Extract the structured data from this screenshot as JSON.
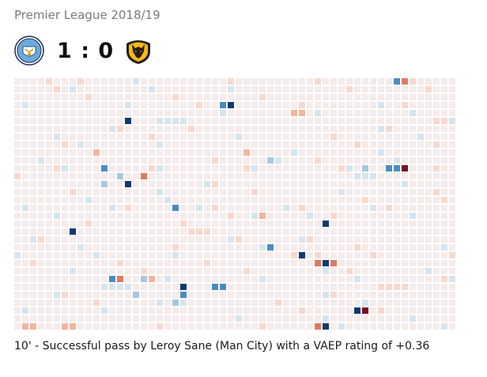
{
  "header": {
    "season": "Premier League 2018/19",
    "home_score": "1",
    "separator": ":",
    "away_score": "0",
    "home_crest_icon": "man-city-crest-icon",
    "away_crest_icon": "wolves-crest-icon"
  },
  "grid": {
    "rows": 32,
    "cols": 56,
    "colors": {
      "empty": "#f4ebea",
      "pos_light": "#d6e4ef",
      "pos_mid": "#a6c8e0",
      "pos_strong": "#4a8cc0",
      "pos_max": "#0d3a6e",
      "neg_light": "#f8d8cc",
      "neg_mid": "#f2b59e",
      "neg_strong": "#e07a5f",
      "neg_max": "#7a0e2a"
    },
    "highlights": [
      [
        0,
        48,
        "pos_strong"
      ],
      [
        0,
        49,
        "neg_strong"
      ],
      [
        0,
        38,
        "neg_light"
      ],
      [
        0,
        8,
        "neg_light"
      ],
      [
        3,
        26,
        "pos_strong"
      ],
      [
        3,
        27,
        "pos_max"
      ],
      [
        4,
        35,
        "neg_mid"
      ],
      [
        4,
        36,
        "neg_mid"
      ],
      [
        5,
        14,
        "pos_max"
      ],
      [
        5,
        55,
        "pos_light"
      ],
      [
        9,
        10,
        "neg_mid"
      ],
      [
        9,
        29,
        "neg_mid"
      ],
      [
        10,
        32,
        "pos_mid"
      ],
      [
        10,
        33,
        "pos_light"
      ],
      [
        11,
        11,
        "pos_strong"
      ],
      [
        11,
        44,
        "pos_mid"
      ],
      [
        11,
        47,
        "pos_strong"
      ],
      [
        11,
        48,
        "pos_strong"
      ],
      [
        11,
        49,
        "neg_max"
      ],
      [
        12,
        13,
        "pos_mid"
      ],
      [
        12,
        16,
        "neg_strong"
      ],
      [
        12,
        45,
        "pos_light"
      ],
      [
        13,
        11,
        "pos_mid"
      ],
      [
        13,
        14,
        "pos_max"
      ],
      [
        16,
        20,
        "pos_strong"
      ],
      [
        17,
        30,
        "pos_light"
      ],
      [
        17,
        31,
        "neg_mid"
      ],
      [
        18,
        39,
        "pos_max"
      ],
      [
        19,
        7,
        "pos_max"
      ],
      [
        21,
        32,
        "pos_strong"
      ],
      [
        22,
        36,
        "pos_max"
      ],
      [
        22,
        38,
        "neg_light"
      ],
      [
        23,
        38,
        "neg_strong"
      ],
      [
        23,
        39,
        "pos_max"
      ],
      [
        23,
        40,
        "neg_strong"
      ],
      [
        25,
        12,
        "pos_strong"
      ],
      [
        25,
        13,
        "neg_strong"
      ],
      [
        25,
        16,
        "pos_mid"
      ],
      [
        25,
        17,
        "neg_mid"
      ],
      [
        26,
        21,
        "pos_max"
      ],
      [
        26,
        25,
        "pos_strong"
      ],
      [
        26,
        26,
        "pos_strong"
      ],
      [
        27,
        15,
        "pos_mid"
      ],
      [
        27,
        21,
        "pos_strong"
      ],
      [
        28,
        18,
        "pos_light"
      ],
      [
        28,
        20,
        "pos_mid"
      ],
      [
        29,
        43,
        "pos_max"
      ],
      [
        29,
        44,
        "neg_max"
      ],
      [
        31,
        38,
        "neg_strong"
      ],
      [
        31,
        39,
        "pos_max"
      ],
      [
        31,
        1,
        "neg_mid"
      ],
      [
        31,
        2,
        "neg_mid"
      ],
      [
        31,
        6,
        "neg_mid"
      ],
      [
        31,
        7,
        "neg_mid"
      ]
    ]
  },
  "caption": "10' - Successful pass by Leroy Sane (Man City) with a VAEP rating of +0.36"
}
